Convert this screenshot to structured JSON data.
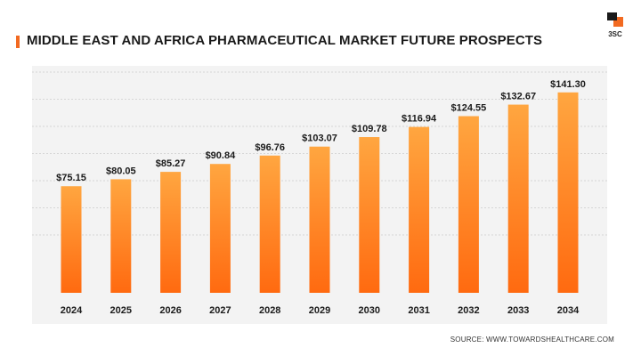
{
  "header": {
    "title": "MIDDLE EAST AND AFRICA PHARMACEUTICAL MARKET FUTURE PROSPECTS",
    "logo_text": "3SC"
  },
  "footer": {
    "source": "SOURCE: WWW.TOWARDSHEALTHCARE.COM"
  },
  "colors": {
    "bar_top": "#ffa640",
    "bar_bottom": "#ff6a10",
    "accent": "#f26a21",
    "panel_bg": "#f3f3f3",
    "grid": "#d6d6d6"
  },
  "chart_data": {
    "type": "bar",
    "title": "MIDDLE EAST AND AFRICA PHARMACEUTICAL MARKET FUTURE PROSPECTS",
    "xlabel": "",
    "ylabel": "",
    "categories": [
      "2024",
      "2025",
      "2026",
      "2027",
      "2028",
      "2029",
      "2030",
      "2031",
      "2032",
      "2033",
      "2034"
    ],
    "values": [
      75.15,
      80.05,
      85.27,
      90.84,
      96.76,
      103.07,
      109.78,
      116.94,
      124.55,
      132.67,
      141.3
    ],
    "data_labels": [
      "$75.15",
      "$80.05",
      "$85.27",
      "$90.84",
      "$96.76",
      "$103.07",
      "$109.78",
      "$116.94",
      "$124.55",
      "$132.67",
      "$141.30"
    ],
    "ylim": [
      0,
      160
    ],
    "grid": true,
    "legend": "none"
  }
}
